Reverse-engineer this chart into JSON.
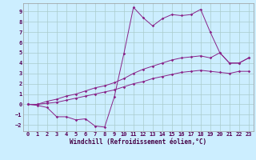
{
  "xlabel": "Windchill (Refroidissement éolien,°C)",
  "background_color": "#cceeff",
  "grid_color": "#aacccc",
  "line_color": "#882288",
  "xlim": [
    -0.5,
    23.5
  ],
  "ylim": [
    -2.6,
    9.8
  ],
  "xticks": [
    0,
    1,
    2,
    3,
    4,
    5,
    6,
    7,
    8,
    9,
    10,
    11,
    12,
    13,
    14,
    15,
    16,
    17,
    18,
    19,
    20,
    21,
    22,
    23
  ],
  "yticks": [
    -2,
    -1,
    0,
    1,
    2,
    3,
    4,
    5,
    6,
    7,
    8,
    9
  ],
  "line1_x": [
    0,
    1,
    2,
    3,
    4,
    5,
    6,
    7,
    8,
    9,
    10,
    11,
    12,
    13,
    14,
    15,
    16,
    17,
    18,
    19,
    20,
    21,
    22,
    23
  ],
  "line1_y": [
    0.0,
    -0.1,
    -0.3,
    -1.2,
    -1.2,
    -1.5,
    -1.4,
    -2.1,
    -2.2,
    0.7,
    4.9,
    9.4,
    8.4,
    7.6,
    8.3,
    8.7,
    8.6,
    8.7,
    9.2,
    7.0,
    5.0,
    4.0,
    4.0,
    4.5
  ],
  "line2_x": [
    0,
    1,
    2,
    3,
    4,
    5,
    6,
    7,
    8,
    9,
    10,
    11,
    12,
    13,
    14,
    15,
    16,
    17,
    18,
    19,
    20,
    21,
    22,
    23
  ],
  "line2_y": [
    0.0,
    0.0,
    0.3,
    0.5,
    0.8,
    1.0,
    1.3,
    1.6,
    1.8,
    2.1,
    2.5,
    3.0,
    3.4,
    3.7,
    4.0,
    4.3,
    4.5,
    4.6,
    4.7,
    4.5,
    5.0,
    4.0,
    4.0,
    4.5
  ],
  "line3_x": [
    0,
    1,
    2,
    3,
    4,
    5,
    6,
    7,
    8,
    9,
    10,
    11,
    12,
    13,
    14,
    15,
    16,
    17,
    18,
    19,
    20,
    21,
    22,
    23
  ],
  "line3_y": [
    0.0,
    0.0,
    0.1,
    0.2,
    0.4,
    0.6,
    0.8,
    1.0,
    1.2,
    1.4,
    1.7,
    2.0,
    2.2,
    2.5,
    2.7,
    2.9,
    3.1,
    3.2,
    3.3,
    3.2,
    3.1,
    3.0,
    3.2,
    3.2
  ]
}
